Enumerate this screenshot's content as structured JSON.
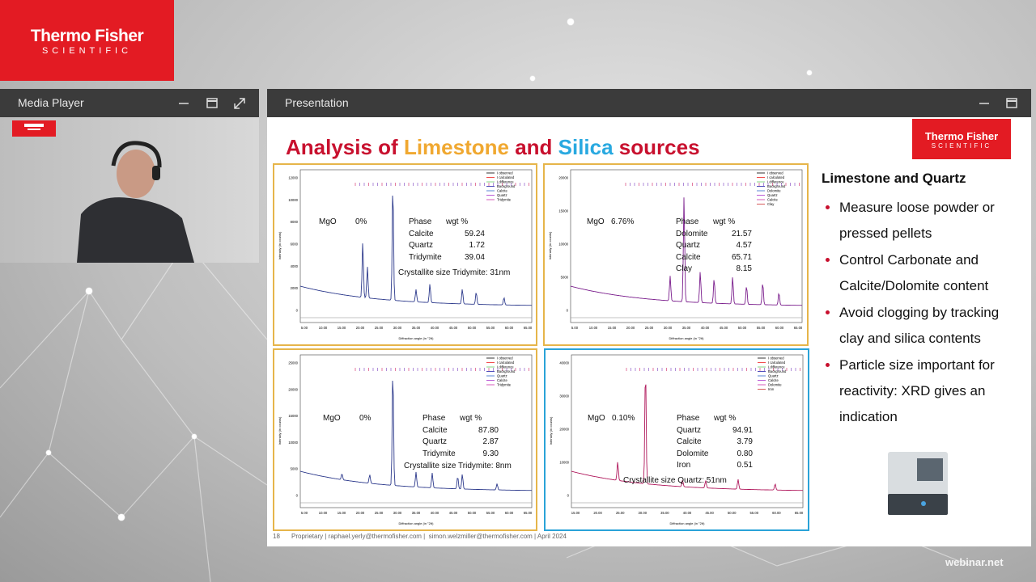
{
  "logo": {
    "brand": "Thermo Fisher",
    "sub": "SCIENTIFIC"
  },
  "media_player": {
    "title": "Media Player"
  },
  "presentation": {
    "title": "Presentation"
  },
  "slide": {
    "title": [
      "Analysis of ",
      "Limestone",
      " and ",
      "Silica",
      " sources"
    ],
    "axis": {
      "y_label": "Intensity (in counts)",
      "x_label": "Diffraction angle (in °2θ)"
    },
    "panels": [
      {
        "mgo_label": "MgO",
        "mgo_value": "0%",
        "table": {
          "header": [
            "Phase",
            "wgt %"
          ],
          "rows": [
            [
              "Calcite",
              "59.24"
            ],
            [
              "Quartz",
              "1.72"
            ],
            [
              "Tridymite",
              "39.04"
            ]
          ]
        },
        "crystallite": "Crystallite size Tridymite: 31nm",
        "legend": [
          "I observed",
          "I calculated",
          "I difference",
          "Background",
          "Calcite",
          "Quartz",
          "Tridymite"
        ],
        "yticks": [
          "0",
          "2000",
          "4000",
          "6000",
          "8000",
          "10000",
          "12000"
        ],
        "xticks": [
          "5.00",
          "10.00",
          "15.00",
          "20.00",
          "25.00",
          "30.00",
          "35.00",
          "40.00",
          "45.00",
          "50.00",
          "55.00",
          "60.00",
          "65.00"
        ]
      },
      {
        "mgo_label": "MgO",
        "mgo_value": "6.76%",
        "table": {
          "header": [
            "Phase",
            "wgt %"
          ],
          "rows": [
            [
              "Dolomite",
              "21.57"
            ],
            [
              "Quartz",
              "4.57"
            ],
            [
              "Calcite",
              "65.71"
            ],
            [
              "Clay",
              "8.15"
            ]
          ]
        },
        "legend": [
          "I observed",
          "I calculated",
          "I difference",
          "Background",
          "Dolomite",
          "Quartz",
          "Calcite",
          "Clay"
        ],
        "yticks": [
          "0",
          "5000",
          "10000",
          "15000",
          "20000"
        ],
        "xticks": [
          "5.00",
          "10.00",
          "15.00",
          "20.00",
          "25.00",
          "30.00",
          "35.00",
          "40.00",
          "45.00",
          "50.00",
          "55.00",
          "60.00",
          "65.00"
        ]
      },
      {
        "mgo_label": "MgO",
        "mgo_value": "0%",
        "table": {
          "header": [
            "Phase",
            "wgt %"
          ],
          "rows": [
            [
              "Calcite",
              "87.80"
            ],
            [
              "Quartz",
              "2.87"
            ],
            [
              "Tridymite",
              "9.30"
            ]
          ]
        },
        "crystallite": "Crystallite size Tridymite: 8nm",
        "legend": [
          "I observed",
          "I calculated",
          "I difference",
          "Background",
          "Quartz",
          "Calcite",
          "Tridymite"
        ],
        "yticks": [
          "0",
          "5000",
          "10000",
          "15000",
          "20000",
          "25000"
        ],
        "xticks": [
          "5.00",
          "10.00",
          "15.00",
          "20.00",
          "25.00",
          "30.00",
          "35.00",
          "40.00",
          "45.00",
          "50.00",
          "55.00",
          "60.00",
          "65.00"
        ]
      },
      {
        "mgo_label": "MgO",
        "mgo_value": "0.10%",
        "table": {
          "header": [
            "Phase",
            "wgt %"
          ],
          "rows": [
            [
              "Quartz",
              "94.91"
            ],
            [
              "Calcite",
              "3.79"
            ],
            [
              "Dolomite",
              "0.80"
            ],
            [
              "Iron",
              "0.51"
            ]
          ]
        },
        "crystallite": "Crystallite size Quartz: 51nm",
        "legend": [
          "I observed",
          "I calculated",
          "I difference",
          "Background",
          "Quartz",
          "Calcite",
          "Dolomite",
          "Iron"
        ],
        "yticks": [
          "0",
          "10000",
          "20000",
          "30000",
          "40000"
        ],
        "xticks": [
          "15.00",
          "20.00",
          "25.00",
          "30.00",
          "35.00",
          "40.00",
          "45.00",
          "50.00",
          "55.00",
          "60.00",
          "65.00"
        ]
      }
    ],
    "sidebar": {
      "heading": "Limestone and Quartz",
      "bullets": [
        "Measure loose powder or pressed pellets",
        "Control Carbonate and Calcite/Dolomite content",
        "Avoid clogging by tracking clay and silica contents",
        "Particle size important for reactivity: XRD gives an indication"
      ]
    },
    "footer": {
      "page": "18",
      "text": "Proprietary | raphael.yerly@thermofisher.com |  simon.welzmiller@thermofisher.com | April 2024"
    }
  },
  "watermark": "webinar.net"
}
